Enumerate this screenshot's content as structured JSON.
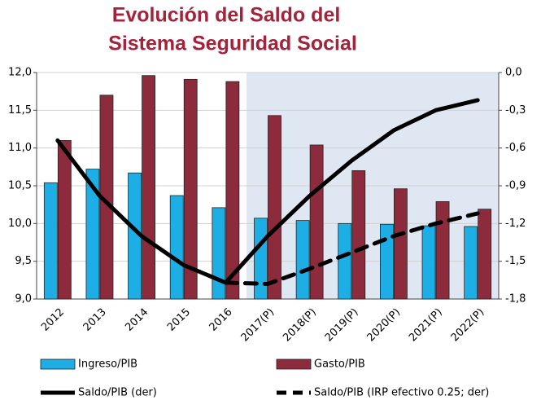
{
  "chart_data": {
    "type": "bar",
    "title": [
      "Evolución del Saldo del",
      "Sistema Seguridad Social"
    ],
    "categories": [
      "2012",
      "2013",
      "2014",
      "2015",
      "2016",
      "2017(P)",
      "2018(P)",
      "2019(P)",
      "2020(P)",
      "2021(P)",
      "2022(P)"
    ],
    "series": [
      {
        "name": "Ingreso/PIB",
        "type": "bar",
        "color": "#1eaee6",
        "values": [
          10.54,
          10.72,
          10.67,
          10.37,
          10.21,
          10.07,
          10.04,
          10.0,
          9.99,
          9.97,
          9.96
        ]
      },
      {
        "name": "Gasto/PIB",
        "type": "bar",
        "color": "#8c2b3c",
        "values": [
          11.1,
          11.7,
          11.96,
          11.91,
          11.88,
          11.43,
          11.04,
          10.7,
          10.46,
          10.29,
          10.19
        ]
      },
      {
        "name": "Saldo/PIB (der)",
        "type": "line",
        "axis": "y2",
        "color": "#000000",
        "dashed": false,
        "values": [
          -0.54,
          -0.98,
          -1.3,
          -1.53,
          -1.67,
          -1.3,
          -0.98,
          -0.7,
          -0.46,
          -0.3,
          -0.22
        ]
      },
      {
        "name": "Saldo/PIB  (IRP efectivo 0.25; der)",
        "type": "line",
        "axis": "y2",
        "color": "#000000",
        "dashed": true,
        "values": [
          null,
          null,
          null,
          null,
          -1.67,
          -1.68,
          -1.56,
          -1.43,
          -1.3,
          -1.2,
          -1.12
        ]
      }
    ],
    "ylim": [
      9,
      12
    ],
    "yticks": [
      {
        "value": 9,
        "label": "9,0"
      },
      {
        "value": 9.5,
        "label": "9,5"
      },
      {
        "value": 10,
        "label": "10,0"
      },
      {
        "value": 10.5,
        "label": "10,5"
      },
      {
        "value": 11,
        "label": "11,0"
      },
      {
        "value": 11.5,
        "label": "11,5"
      },
      {
        "value": 12,
        "label": "12,0"
      }
    ],
    "y2lim": [
      -1.8,
      0
    ],
    "y2ticks": [
      {
        "value": -1.8,
        "label": "-1,8"
      },
      {
        "value": -1.5,
        "label": "-1,5"
      },
      {
        "value": -1.2,
        "label": "-1,2"
      },
      {
        "value": -0.9,
        "label": "-0,9"
      },
      {
        "value": -0.6,
        "label": "-0,6"
      },
      {
        "value": -0.3,
        "label": "-0,3"
      },
      {
        "value": 0,
        "label": "0,0"
      }
    ],
    "grid": true
  }
}
